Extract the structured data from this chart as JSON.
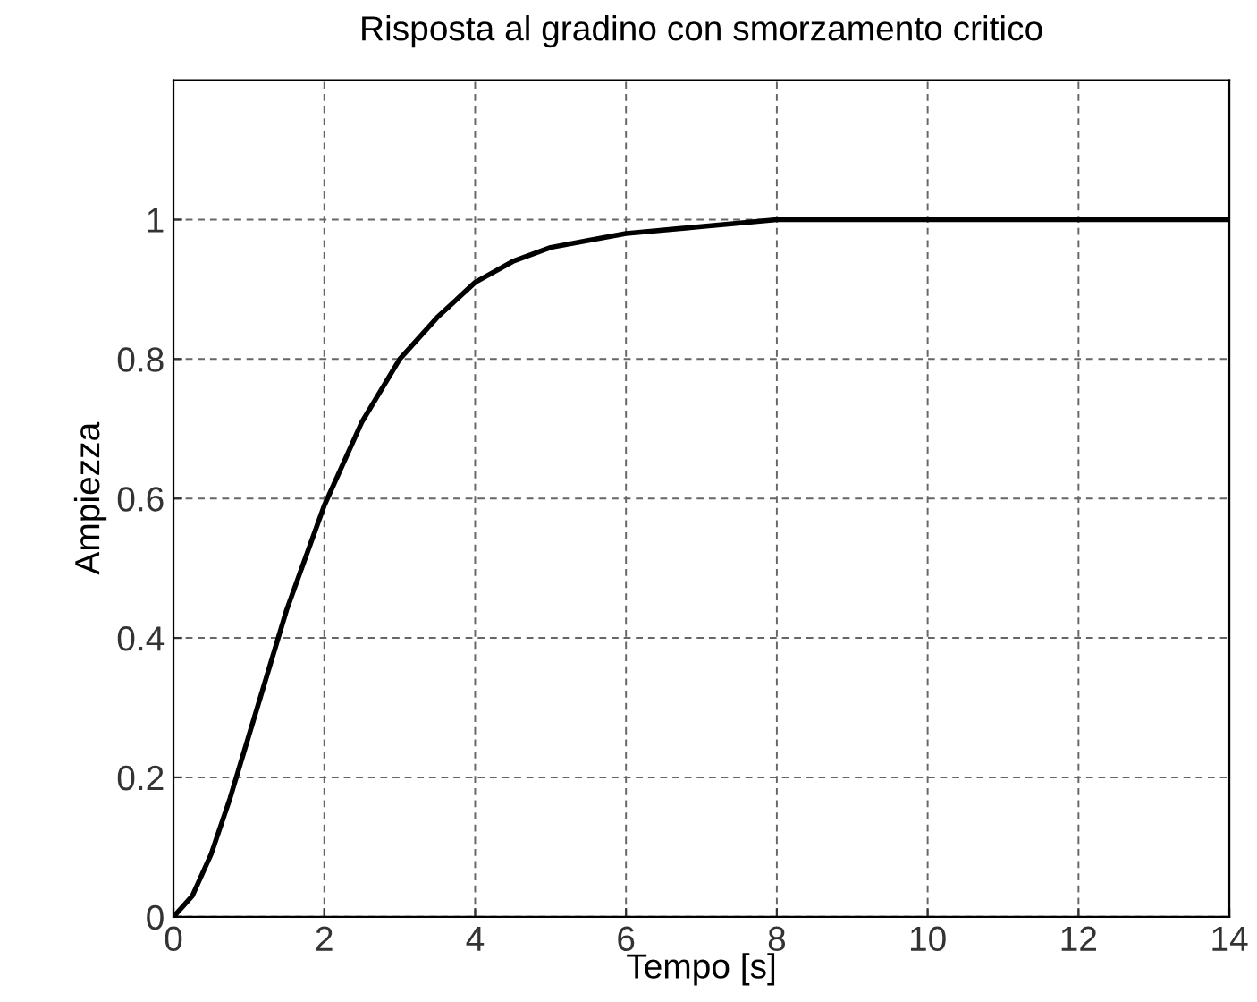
{
  "chart_data": {
    "type": "line",
    "title": "Risposta al gradino con smorzamento critico",
    "xlabel": "Tempo [s]",
    "ylabel": "Ampiezza",
    "x": [
      0,
      0.25,
      0.5,
      0.75,
      1,
      1.5,
      2,
      2.5,
      3,
      3.5,
      4,
      4.5,
      5,
      5.5,
      6,
      7,
      8,
      9,
      10,
      12,
      14
    ],
    "series": [
      {
        "color": "#000000",
        "values": [
          0,
          0.03,
          0.09,
          0.17,
          0.26,
          0.44,
          0.59,
          0.71,
          0.8,
          0.86,
          0.91,
          0.94,
          0.96,
          0.97,
          0.98,
          0.99,
          1.0,
          1.0,
          1.0,
          1.0,
          1.0
        ]
      }
    ],
    "xlim": [
      0,
      14
    ],
    "ylim": [
      0,
      1.2
    ],
    "xticks": [
      0,
      2,
      4,
      6,
      8,
      10,
      12,
      14
    ],
    "yticks": [
      0,
      0.2,
      0.4,
      0.6,
      0.8,
      1
    ],
    "grid": true,
    "line_style": "solid",
    "marker": "none"
  }
}
